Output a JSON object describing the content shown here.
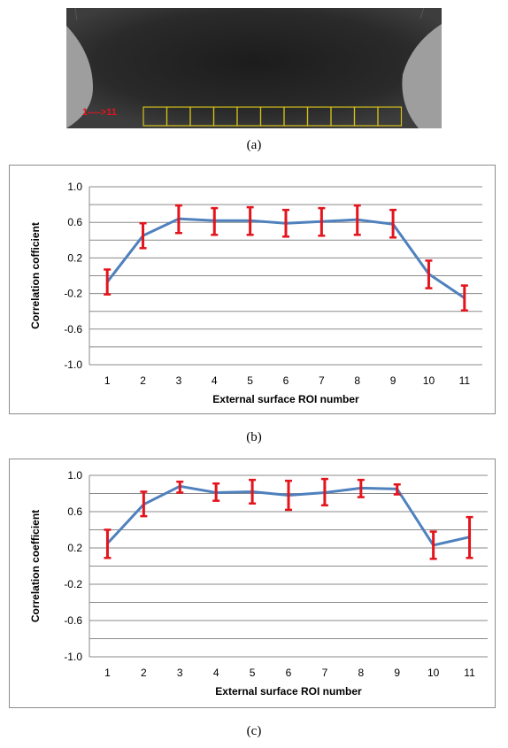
{
  "panel_a": {
    "roi_label": "1---->11",
    "roi_count": 11,
    "caption": "(a)"
  },
  "chart_data": [
    {
      "type": "line",
      "caption": "(b)",
      "xlabel": "External surface  ROI number",
      "ylabel": "Correlation cofficient",
      "categories": [
        "1",
        "2",
        "3",
        "4",
        "5",
        "6",
        "7",
        "8",
        "9",
        "10",
        "11"
      ],
      "yticks": [
        "1.0",
        "0.6",
        "0.2",
        "-0.2",
        "-0.6",
        "-1.0"
      ],
      "ylim": [
        -1.0,
        1.0
      ],
      "grid_step": 0.2,
      "series": [
        {
          "values": [
            -0.07,
            0.45,
            0.64,
            0.62,
            0.62,
            0.59,
            0.61,
            0.63,
            0.58,
            0.02,
            -0.25
          ],
          "err_low": [
            -0.21,
            0.31,
            0.48,
            0.46,
            0.46,
            0.44,
            0.45,
            0.46,
            0.43,
            -0.14,
            -0.39
          ],
          "err_high": [
            0.07,
            0.59,
            0.79,
            0.76,
            0.77,
            0.74,
            0.76,
            0.79,
            0.74,
            0.17,
            -0.11
          ]
        }
      ],
      "colors": {
        "line": "#4f81bd",
        "error": "#e3141c"
      }
    },
    {
      "type": "line",
      "caption": "(c)",
      "xlabel": "External surface  ROI number",
      "ylabel": "Correlation coefficient",
      "categories": [
        "1",
        "2",
        "3",
        "4",
        "5",
        "6",
        "7",
        "8",
        "9",
        "10",
        "11"
      ],
      "yticks": [
        "1.0",
        "0.6",
        "0.2",
        "-0.2",
        "-0.6",
        "-1.0"
      ],
      "ylim": [
        -1.0,
        1.0
      ],
      "grid_step": 0.2,
      "series": [
        {
          "values": [
            0.25,
            0.68,
            0.88,
            0.81,
            0.82,
            0.78,
            0.81,
            0.86,
            0.85,
            0.23,
            0.32
          ],
          "err_low": [
            0.09,
            0.55,
            0.81,
            0.72,
            0.69,
            0.62,
            0.67,
            0.76,
            0.79,
            0.08,
            0.09
          ],
          "err_high": [
            0.4,
            0.82,
            0.93,
            0.91,
            0.95,
            0.94,
            0.96,
            0.95,
            0.9,
            0.38,
            0.54
          ]
        }
      ],
      "colors": {
        "line": "#4f81bd",
        "error": "#e3141c"
      }
    }
  ]
}
